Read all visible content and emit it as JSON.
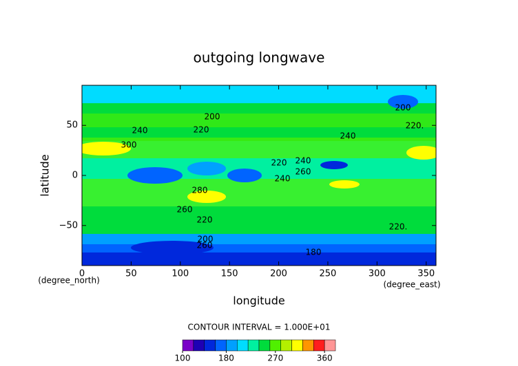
{
  "chart_data": {
    "type": "contour",
    "title": "outgoing longwave",
    "xlabel": "longitude",
    "ylabel": "latitude",
    "xunit": "(degree_east)",
    "yunit": "(degree_north)",
    "xlim": [
      0,
      360
    ],
    "ylim": [
      -90,
      90
    ],
    "xticks": [
      0,
      50,
      100,
      150,
      200,
      250,
      300,
      350
    ],
    "yticks": [
      {
        "value": -50,
        "label": "−50"
      },
      0,
      50
    ],
    "contour_labels": [
      "200",
      "220.",
      "200",
      "240",
      "220",
      "300",
      "240",
      "220",
      "240",
      "240",
      "260",
      "280",
      "260",
      "220",
      "220.",
      "200",
      "180",
      "260"
    ],
    "colorbar": {
      "title": "CONTOUR INTERVAL = 1.000E+01",
      "lim": [
        100,
        380
      ],
      "ticks": [
        100,
        180,
        270,
        360
      ],
      "colors": [
        "#7a00c8",
        "#1e00b4",
        "#0028dc",
        "#0064ff",
        "#00a0ff",
        "#00dcff",
        "#00f0a0",
        "#00dc3c",
        "#50f000",
        "#b4f000",
        "#ffff00",
        "#ff9600",
        "#ff1e1e",
        "#ff9696"
      ]
    }
  }
}
